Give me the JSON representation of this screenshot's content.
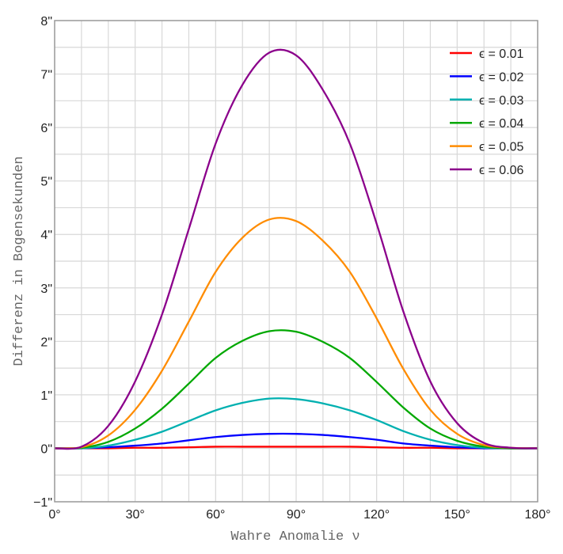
{
  "chart_data": {
    "type": "line",
    "xlabel": "Wahre Anomalie ν",
    "ylabel": "Differenz in Bogensekunden",
    "xlim": [
      0,
      180
    ],
    "ylim": [
      -1,
      8
    ],
    "grid": true,
    "legend_position": "top-right",
    "x_ticks": [
      0,
      30,
      60,
      90,
      120,
      150,
      180
    ],
    "x_tick_labels": [
      "0°",
      "30°",
      "60°",
      "90°",
      "120°",
      "150°",
      "180°"
    ],
    "y_ticks": [
      -1,
      0,
      1,
      2,
      3,
      4,
      5,
      6,
      7,
      8
    ],
    "y_tick_labels": [
      "−1\"",
      "0\"",
      "1\"",
      "2\"",
      "3\"",
      "4\"",
      "5\"",
      "6\"",
      "7\"",
      "8\""
    ],
    "x": [
      0,
      10,
      20,
      30,
      40,
      50,
      60,
      70,
      80,
      90,
      100,
      110,
      120,
      130,
      140,
      150,
      160,
      170,
      180
    ],
    "series": [
      {
        "name": "ϵ = 0.01",
        "color": "#ff0000",
        "values": [
          0,
          0,
          0,
          0.01,
          0.01,
          0.02,
          0.03,
          0.03,
          0.03,
          0.03,
          0.03,
          0.03,
          0.02,
          0.01,
          0.01,
          0,
          0,
          0,
          0
        ]
      },
      {
        "name": "ϵ = 0.02",
        "color": "#0000ff",
        "values": [
          0,
          0,
          0.02,
          0.05,
          0.09,
          0.15,
          0.21,
          0.25,
          0.27,
          0.27,
          0.25,
          0.21,
          0.16,
          0.09,
          0.05,
          0.02,
          0,
          0,
          0
        ]
      },
      {
        "name": "ϵ = 0.03",
        "color": "#00b0b0",
        "values": [
          0,
          0,
          0.05,
          0.16,
          0.31,
          0.51,
          0.71,
          0.85,
          0.93,
          0.92,
          0.84,
          0.71,
          0.53,
          0.32,
          0.16,
          0.06,
          0.01,
          0,
          0
        ]
      },
      {
        "name": "ϵ = 0.04",
        "color": "#00a800",
        "values": [
          0,
          0.01,
          0.12,
          0.37,
          0.74,
          1.21,
          1.69,
          2.01,
          2.19,
          2.18,
          1.99,
          1.69,
          1.24,
          0.76,
          0.37,
          0.14,
          0.03,
          0,
          0
        ]
      },
      {
        "name": "ϵ = 0.05",
        "color": "#ff8c00",
        "values": [
          0,
          0.02,
          0.24,
          0.72,
          1.45,
          2.37,
          3.3,
          3.94,
          4.28,
          4.25,
          3.88,
          3.3,
          2.43,
          1.48,
          0.72,
          0.27,
          0.06,
          0.01,
          0
        ]
      },
      {
        "name": "ϵ = 0.06",
        "color": "#8b008b",
        "values": [
          0,
          0.03,
          0.42,
          1.25,
          2.5,
          4.1,
          5.7,
          6.8,
          7.4,
          7.35,
          6.7,
          5.7,
          4.2,
          2.55,
          1.25,
          0.47,
          0.1,
          0.01,
          0
        ]
      }
    ]
  }
}
